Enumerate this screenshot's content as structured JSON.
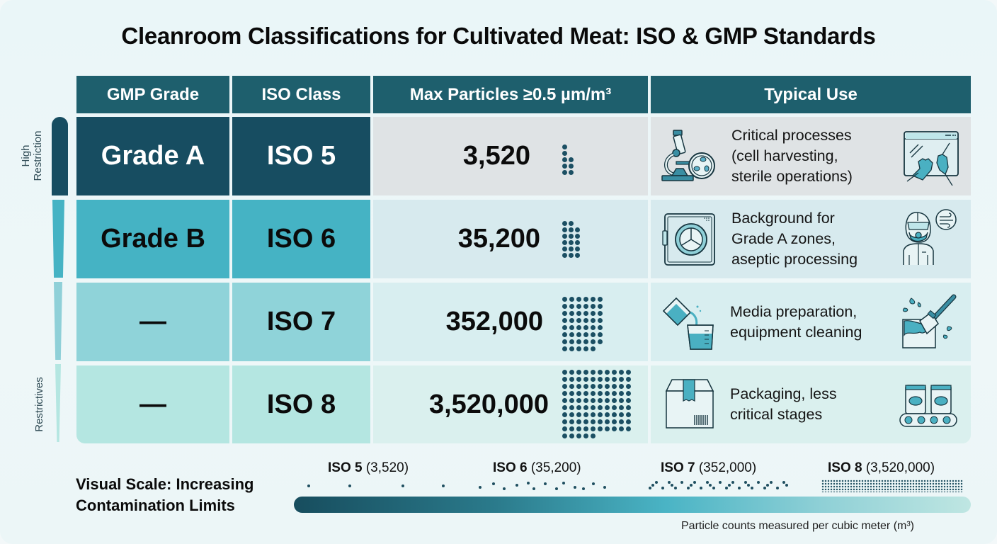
{
  "title": "Cleanroom Classifications for Cultivated Meat: ISO & GMP Standards",
  "table": {
    "headers": [
      "GMP Grade",
      "ISO Class",
      "Max Particles ≥0.5 µm/m³",
      "Typical Use"
    ],
    "rows": [
      {
        "gmp_grade": "Grade A",
        "iso_class": "ISO 5",
        "max_particles": "3,520",
        "typical_use": [
          "Critical processes",
          "(cell harvesting,",
          "sterile operations)"
        ],
        "left_icon": "microscope-petri-dish-icon",
        "right_icon": "gloved-hands-biosafety-cabinet-icon"
      },
      {
        "gmp_grade": "Grade B",
        "iso_class": "ISO 6",
        "max_particles": "35,200",
        "typical_use": [
          "Background for",
          "Grade A zones,",
          "aseptic processing"
        ],
        "left_icon": "pass-through-chamber-icon",
        "right_icon": "cleanroom-suit-respirator-icon"
      },
      {
        "gmp_grade": "—",
        "iso_class": "ISO 7",
        "max_particles": "352,000",
        "typical_use": [
          "Media preparation,",
          "equipment cleaning"
        ],
        "left_icon": "pouring-beaker-icon",
        "right_icon": "cleaning-brush-icon"
      },
      {
        "gmp_grade": "—",
        "iso_class": "ISO 8",
        "max_particles": "3,520,000",
        "typical_use": [
          "Packaging, less",
          "critical stages"
        ],
        "left_icon": "barcode-box-icon",
        "right_icon": "conveyor-belt-icon"
      }
    ]
  },
  "restriction_axis": {
    "top_label": [
      "High",
      "Restriction"
    ],
    "bottom_label": "Restrictives"
  },
  "scale": {
    "title": [
      "Visual Scale: Increasing",
      "Contamination Limits"
    ],
    "labels": [
      {
        "class": "ISO 5",
        "value": "(3,520)"
      },
      {
        "class": "ISO 6",
        "value": "(35,200)"
      },
      {
        "class": "ISO 7",
        "value": "(352,000)"
      },
      {
        "class": "ISO 8",
        "value": "(3,520,000)"
      }
    ],
    "note": "Particle counts measured per cubic meter (m³)"
  },
  "colors": {
    "header": "#1e5f6d",
    "grade_a": "#174d61",
    "grade_b": "#45b3c4",
    "iso7": "#8fd3d9",
    "iso8": "#b4e6e1",
    "dot": "#1b4f63"
  }
}
